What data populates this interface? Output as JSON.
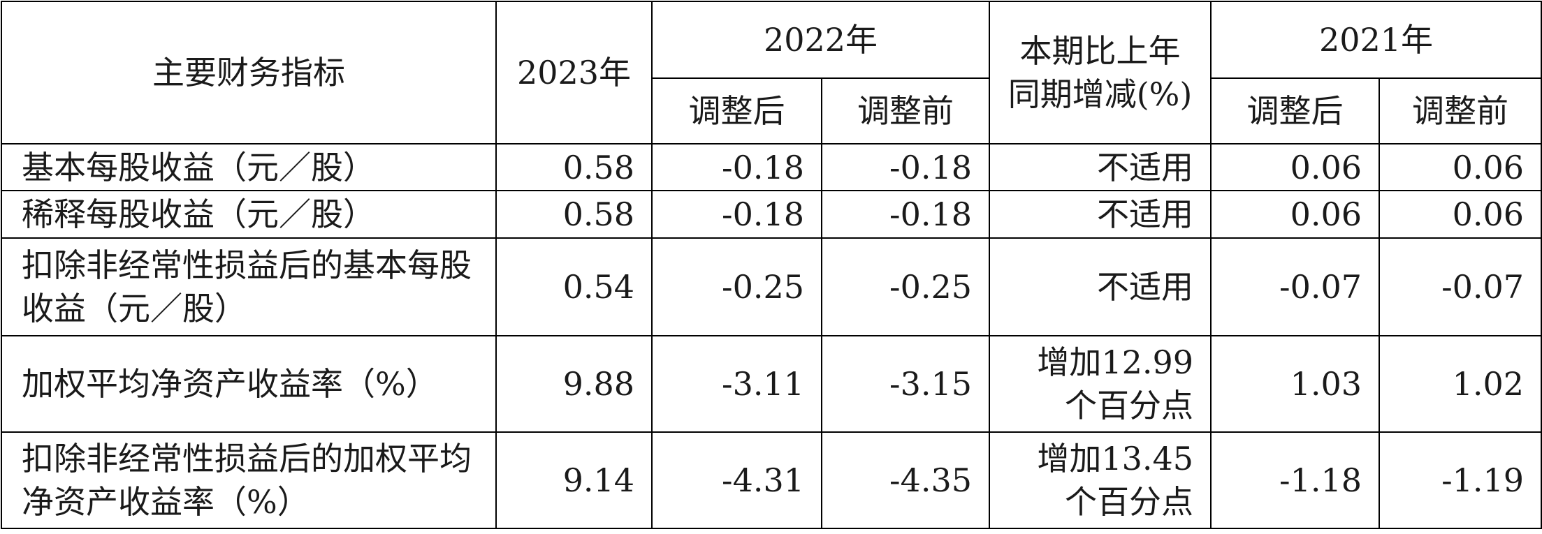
{
  "table": {
    "headers": {
      "indicator": "主要财务指标",
      "year_2023": "2023年",
      "year_2022": "2022年",
      "change": "本期比上年同期增减(%)",
      "year_2021": "2021年",
      "adjusted_after": "调整后",
      "adjusted_before": "调整前"
    },
    "rows": [
      {
        "label": "基本每股收益（元／股）",
        "v2023": "0.58",
        "v2022_after": "-0.18",
        "v2022_before": "-0.18",
        "change": "不适用",
        "v2021_after": "0.06",
        "v2021_before": "0.06"
      },
      {
        "label": "稀释每股收益（元／股）",
        "v2023": "0.58",
        "v2022_after": "-0.18",
        "v2022_before": "-0.18",
        "change": "不适用",
        "v2021_after": "0.06",
        "v2021_before": "0.06"
      },
      {
        "label": "扣除非经常性损益后的基本每股收益（元／股）",
        "v2023": "0.54",
        "v2022_after": "-0.25",
        "v2022_before": "-0.25",
        "change": "不适用",
        "v2021_after": "-0.07",
        "v2021_before": "-0.07"
      },
      {
        "label": "加权平均净资产收益率（%）",
        "v2023": "9.88",
        "v2022_after": "-3.11",
        "v2022_before": "-3.15",
        "change": "增加12.99个百分点",
        "v2021_after": "1.03",
        "v2021_before": "1.02"
      },
      {
        "label": "扣除非经常性损益后的加权平均净资产收益率（%）",
        "v2023": "9.14",
        "v2022_after": "-4.31",
        "v2022_before": "-4.35",
        "change": "增加13.45个百分点",
        "v2021_after": "-1.18",
        "v2021_before": "-1.19"
      }
    ]
  }
}
